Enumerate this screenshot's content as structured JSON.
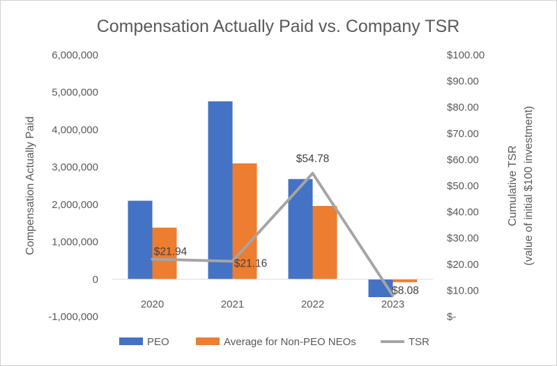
{
  "chart_data": {
    "type": "bar",
    "title": "Compensation Actually Paid vs. Company TSR",
    "categories": [
      "2020",
      "2021",
      "2022",
      "2023"
    ],
    "ylabel": "Compensation Actually Paid",
    "y2label_line1": "Cumulative TSR",
    "y2label_line2": "(value of initial $100 investment)",
    "ylim": [
      -1000000,
      6000000
    ],
    "y2lim": [
      0,
      100
    ],
    "y_ticks": [
      6000000,
      5000000,
      4000000,
      3000000,
      2000000,
      1000000,
      0,
      -1000000
    ],
    "y_tick_labels": [
      "6,000,000",
      "5,000,000",
      "4,000,000",
      "3,000,000",
      "2,000,000",
      "1,000,000",
      "0",
      "-1,000,000"
    ],
    "y2_ticks": [
      100,
      90,
      80,
      70,
      60,
      50,
      40,
      30,
      20,
      10,
      0
    ],
    "y2_tick_labels": [
      "$100.00",
      "$90.00",
      "$80.00",
      "$70.00",
      "$60.00",
      "$50.00",
      "$40.00",
      "$30.00",
      "$20.00",
      "$10.00",
      "$-"
    ],
    "series": [
      {
        "name": "PEO",
        "kind": "bar",
        "color": "#4472c4",
        "values": [
          2100000,
          4760000,
          2680000,
          -480000
        ]
      },
      {
        "name": "Average for Non-PEO NEOs",
        "kind": "bar",
        "color": "#ed7d31",
        "values": [
          1380000,
          3100000,
          1960000,
          -80000
        ]
      },
      {
        "name": "TSR",
        "kind": "line",
        "axis": "right",
        "color": "#a5a5a5",
        "values": [
          21.94,
          21.16,
          54.78,
          8.08
        ],
        "labels": [
          "$21.94",
          "$21.16",
          "$54.78",
          "$8.08"
        ]
      }
    ],
    "legend": {
      "position": "bottom"
    }
  }
}
